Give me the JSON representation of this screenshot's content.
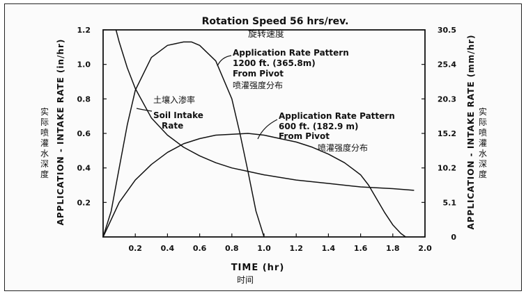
{
  "chart_data": {
    "type": "line",
    "title": "Rotation Speed 56 hrs/rev.",
    "subtitle": "旋转速度",
    "xlabel": "TIME (hr)",
    "xlabel_cn": "时间",
    "ylabel_left": "APPLICATION - INTAKE RATE (in/hr)",
    "ylabel_left_cn": "实际喷灌水深度",
    "ylabel_right": "APPLICATION - INTAKE RATE (mm/hr)",
    "ylabel_right_cn": "实际喷灌水深度",
    "xlim": [
      0,
      2.0
    ],
    "ylim": [
      0,
      1.2
    ],
    "x_ticks": [
      "0.2",
      "0.4",
      "0.6",
      "0.8",
      "1.0",
      "1.2",
      "1.4",
      "1.6",
      "1.8",
      "2.0"
    ],
    "y_ticks_left": [
      "0.2",
      "0.4",
      "0.6",
      "0.8",
      "1.0",
      "1.2"
    ],
    "y_ticks_right": [
      "0",
      "5.1",
      "10.2",
      "15.2",
      "20.3",
      "25.4",
      "30.5"
    ],
    "series": [
      {
        "name": "Application Rate Pattern 1200 ft. (365.8m) From Pivot",
        "x": [
          0.0,
          0.05,
          0.1,
          0.15,
          0.2,
          0.3,
          0.4,
          0.5,
          0.55,
          0.6,
          0.7,
          0.8,
          0.85,
          0.9,
          0.95,
          1.0
        ],
        "y": [
          0.0,
          0.15,
          0.4,
          0.65,
          0.85,
          1.04,
          1.11,
          1.13,
          1.13,
          1.11,
          1.02,
          0.8,
          0.6,
          0.38,
          0.15,
          0.0
        ]
      },
      {
        "name": "Application Rate Pattern 600 ft. (182.9 m) From Pivot",
        "x": [
          0.0,
          0.1,
          0.2,
          0.3,
          0.4,
          0.5,
          0.6,
          0.7,
          0.8,
          0.9,
          1.0,
          1.1,
          1.2,
          1.3,
          1.4,
          1.5,
          1.6,
          1.65,
          1.7,
          1.75,
          1.8,
          1.85,
          1.88
        ],
        "y": [
          0.0,
          0.2,
          0.33,
          0.42,
          0.49,
          0.54,
          0.57,
          0.59,
          0.595,
          0.6,
          0.59,
          0.57,
          0.55,
          0.52,
          0.48,
          0.43,
          0.36,
          0.3,
          0.22,
          0.14,
          0.07,
          0.02,
          0.0
        ]
      },
      {
        "name": "Soil Intake Rate",
        "x": [
          0.08,
          0.1,
          0.15,
          0.2,
          0.3,
          0.4,
          0.5,
          0.6,
          0.7,
          0.8,
          0.9,
          1.0,
          1.2,
          1.4,
          1.6,
          1.8,
          1.93
        ],
        "y": [
          1.2,
          1.13,
          0.98,
          0.86,
          0.69,
          0.59,
          0.52,
          0.47,
          0.43,
          0.4,
          0.38,
          0.36,
          0.33,
          0.31,
          0.29,
          0.28,
          0.27
        ]
      }
    ],
    "annotations": [
      {
        "text": [
          "Application Rate Pattern",
          "1200 ft.  (365.8m)",
          "From Pivot"
        ],
        "cn": "喷灌强度分布"
      },
      {
        "text": [
          "Application Rate Pattern",
          "600 ft.  (182.9 m)",
          "From Pivot"
        ],
        "cn": "喷灌强度分布"
      },
      {
        "text": [
          "Soil  Intake",
          "Rate"
        ],
        "cn": "土壤入渗率"
      }
    ],
    "grid": false,
    "legend": "none"
  }
}
